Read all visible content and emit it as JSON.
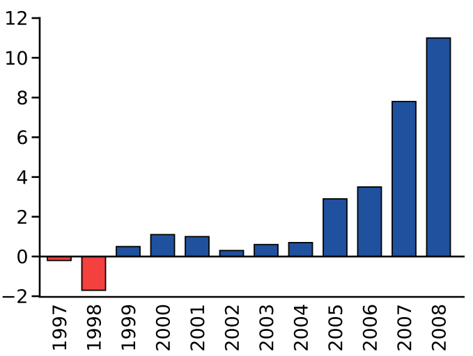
{
  "chart_data": {
    "type": "bar",
    "title": "",
    "xlabel": "",
    "ylabel": "",
    "categories": [
      "1997",
      "1998",
      "1999",
      "2000",
      "2001",
      "2002",
      "2003",
      "2004",
      "2005",
      "2006",
      "2007",
      "2008"
    ],
    "values": [
      -0.2,
      -1.7,
      0.5,
      1.1,
      1.0,
      0.3,
      0.6,
      0.7,
      2.9,
      3.5,
      7.8,
      11.0
    ],
    "ylim": [
      -2,
      12
    ],
    "yticks": [
      12,
      10,
      8,
      6,
      4,
      2,
      0,
      -2
    ],
    "ytick_labels": [
      "12",
      "10",
      "8",
      "6",
      "4",
      "2",
      "0",
      "−2"
    ],
    "x_label_rotation": -90,
    "grid": false,
    "legend": null,
    "colors": {
      "positive_bar": "#1f519e",
      "negative_bar": "#f4403e",
      "bar_edge": "#000000",
      "axis": "#000000",
      "text": "#000000",
      "background": "#ffffff"
    }
  }
}
